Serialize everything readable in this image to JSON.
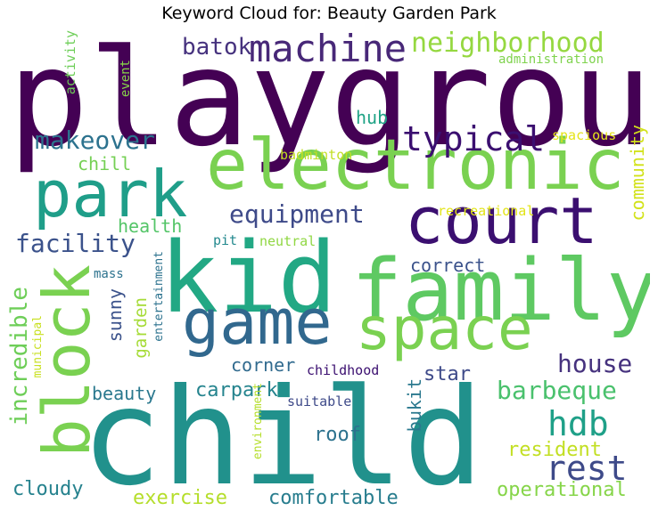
{
  "title": "Keyword Cloud for: Beauty Garden Park",
  "words": [
    {
      "text": "playground",
      "color": "#440154"
    },
    {
      "text": "child",
      "color": "#21918c"
    },
    {
      "text": "kid",
      "color": "#22a884"
    },
    {
      "text": "family",
      "color": "#5ec962"
    },
    {
      "text": "electronic",
      "color": "#7ad151"
    },
    {
      "text": "court",
      "color": "#3b0f70"
    },
    {
      "text": "park",
      "color": "#1f9e89"
    },
    {
      "text": "game",
      "color": "#31688e"
    },
    {
      "text": "space",
      "color": "#7ad151"
    },
    {
      "text": "block",
      "color": "#7ad151"
    },
    {
      "text": "machine",
      "color": "#482878"
    },
    {
      "text": "neighborhood",
      "color": "#95d840"
    },
    {
      "text": "typical",
      "color": "#3b0f70"
    },
    {
      "text": "makeover",
      "color": "#2c728e"
    },
    {
      "text": "equipment",
      "color": "#3e4a89"
    },
    {
      "text": "facility",
      "color": "#3b528b"
    },
    {
      "text": "rest",
      "color": "#3e4a89"
    },
    {
      "text": "hdb",
      "color": "#1fa088"
    },
    {
      "text": "barbeque",
      "color": "#4ac16d"
    },
    {
      "text": "house",
      "color": "#46327e"
    },
    {
      "text": "incredible",
      "color": "#6ece58"
    },
    {
      "text": "batok",
      "color": "#46327e"
    },
    {
      "text": "community",
      "color": "#d2e21b"
    },
    {
      "text": "resident",
      "color": "#c2df23"
    },
    {
      "text": "operational",
      "color": "#86d549"
    },
    {
      "text": "comfortable",
      "color": "#287d8e"
    },
    {
      "text": "exercise",
      "color": "#b5de2b"
    },
    {
      "text": "cloudy",
      "color": "#26828e"
    },
    {
      "text": "roof",
      "color": "#2c728e"
    },
    {
      "text": "bukit",
      "color": "#2a788e"
    },
    {
      "text": "star",
      "color": "#3e4a89"
    },
    {
      "text": "carpark",
      "color": "#25848e"
    },
    {
      "text": "beauty",
      "color": "#2a788e"
    },
    {
      "text": "corner",
      "color": "#306a8e"
    },
    {
      "text": "correct",
      "color": "#3b528b"
    },
    {
      "text": "health",
      "color": "#54c568"
    },
    {
      "text": "chill",
      "color": "#75d054"
    },
    {
      "text": "hub",
      "color": "#20a386"
    },
    {
      "text": "sunny",
      "color": "#3b528b"
    },
    {
      "text": "garden",
      "color": "#a5db36"
    },
    {
      "text": "activity",
      "color": "#6ece58"
    },
    {
      "text": "event",
      "color": "#86d549"
    },
    {
      "text": "administration",
      "color": "#7fd34e"
    },
    {
      "text": "spacious",
      "color": "#e5e419"
    },
    {
      "text": "badminton",
      "color": "#c2df23"
    },
    {
      "text": "recreational",
      "color": "#e2e418"
    },
    {
      "text": "pit",
      "color": "#23898e"
    },
    {
      "text": "neutral",
      "color": "#90d743"
    },
    {
      "text": "mass",
      "color": "#2c728e"
    },
    {
      "text": "entertainment",
      "color": "#2c728e"
    },
    {
      "text": "municipal",
      "color": "#c8e020"
    },
    {
      "text": "childhood",
      "color": "#3b0f70"
    },
    {
      "text": "suitable",
      "color": "#3e4a89"
    },
    {
      "text": "environment",
      "color": "#b5de2b"
    }
  ]
}
